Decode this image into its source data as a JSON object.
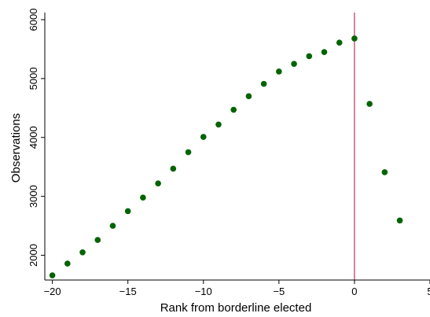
{
  "chart_data": {
    "type": "scatter",
    "title": "",
    "xlabel": "Rank from borderline elected",
    "ylabel": "Observations",
    "xlim": [
      -20.5,
      5
    ],
    "ylim": [
      1580,
      6120
    ],
    "x_ticks": [
      -20,
      -15,
      -10,
      -5,
      0,
      5
    ],
    "x_tick_labels": [
      "−20",
      "−15",
      "−10",
      "−5",
      "0",
      "5"
    ],
    "y_ticks": [
      2000,
      3000,
      4000,
      5000,
      6000
    ],
    "y_tick_labels": [
      "2000",
      "3000",
      "4000",
      "5000",
      "6000"
    ],
    "grid": false,
    "legend": "none",
    "marker_color": "#006400",
    "reference_line": {
      "x": 0,
      "color": "#b0103a"
    },
    "points": [
      {
        "x": -20,
        "y": 1660
      },
      {
        "x": -19,
        "y": 1860
      },
      {
        "x": -18,
        "y": 2050
      },
      {
        "x": -17,
        "y": 2260
      },
      {
        "x": -16,
        "y": 2500
      },
      {
        "x": -15,
        "y": 2750
      },
      {
        "x": -14,
        "y": 2980
      },
      {
        "x": -13,
        "y": 3220
      },
      {
        "x": -12,
        "y": 3470
      },
      {
        "x": -11,
        "y": 3750
      },
      {
        "x": -10,
        "y": 4010
      },
      {
        "x": -9,
        "y": 4220
      },
      {
        "x": -8,
        "y": 4470
      },
      {
        "x": -7,
        "y": 4700
      },
      {
        "x": -6,
        "y": 4910
      },
      {
        "x": -5,
        "y": 5120
      },
      {
        "x": -4,
        "y": 5250
      },
      {
        "x": -3,
        "y": 5380
      },
      {
        "x": -2,
        "y": 5450
      },
      {
        "x": -1,
        "y": 5610
      },
      {
        "x": 0,
        "y": 5680
      },
      {
        "x": 1,
        "y": 4570
      },
      {
        "x": 2,
        "y": 3410
      },
      {
        "x": 3,
        "y": 2590
      }
    ]
  }
}
